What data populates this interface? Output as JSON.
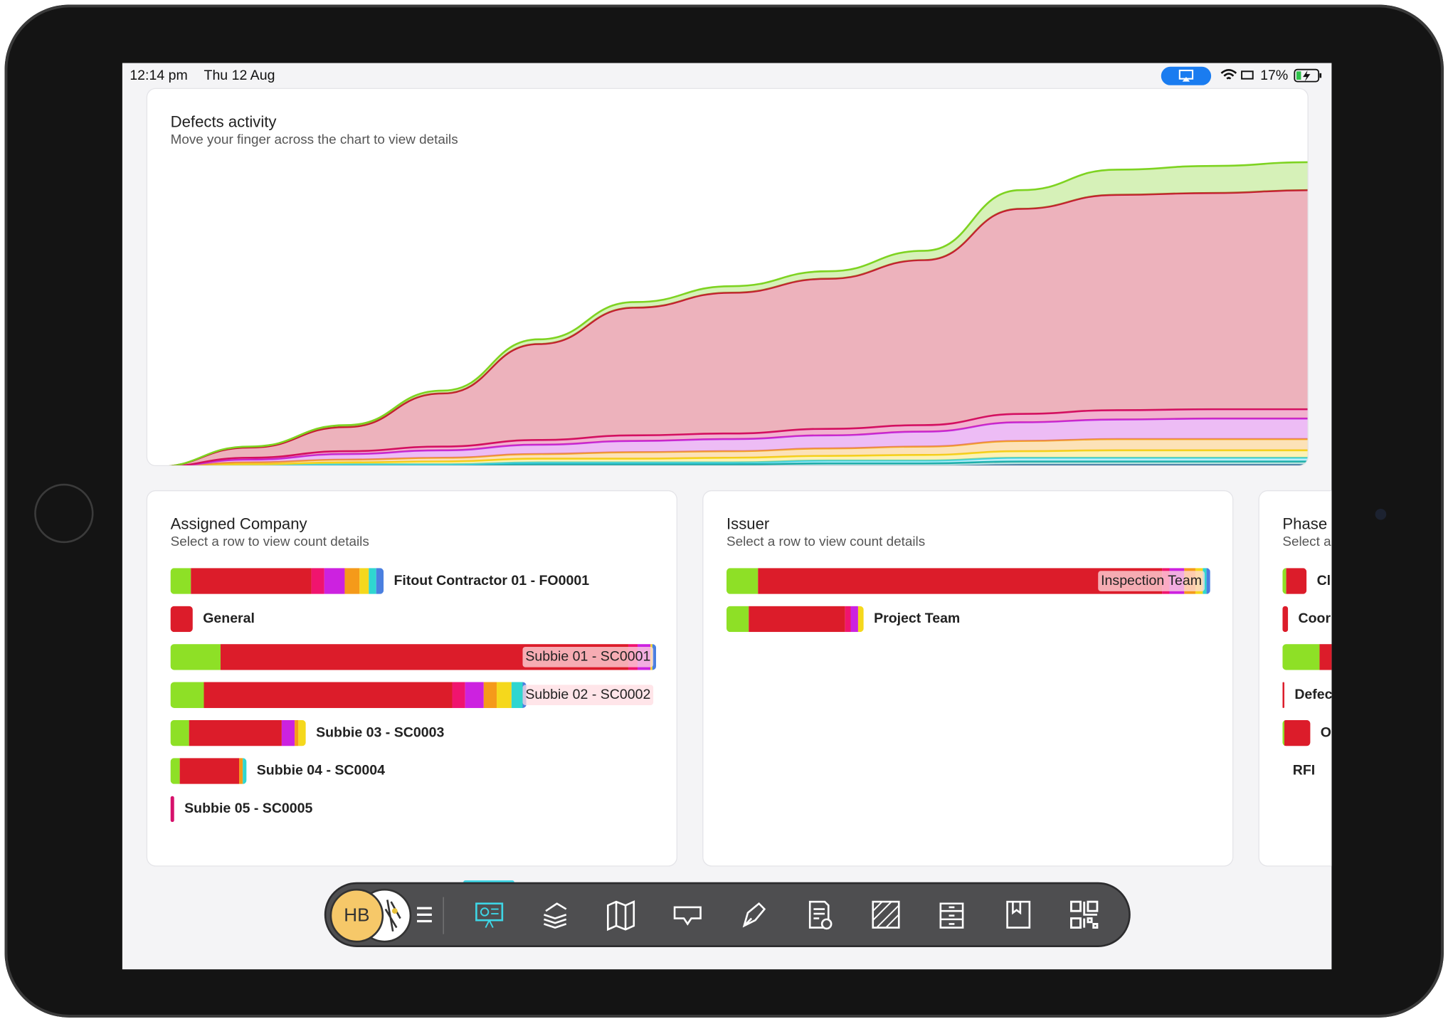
{
  "status_bar": {
    "time": "12:14 pm",
    "date": "Thu 12 Aug",
    "battery": "17%"
  },
  "chart_data": {
    "type": "area",
    "stacked": true,
    "title": "Defects activity",
    "subtitle": "Move your finger across the chart to view details",
    "categories": [
      null,
      null,
      null,
      null,
      null,
      null,
      null,
      null,
      null,
      null,
      null,
      null,
      null
    ],
    "ylim": [
      0,
      330
    ],
    "series": [
      {
        "color": "#1f3b8c",
        "values": [
          0,
          0,
          1,
          1,
          1,
          1,
          1,
          1,
          1,
          2,
          2,
          2,
          2
        ]
      },
      {
        "color": "#1aa8a0",
        "values": [
          0,
          1,
          1,
          1,
          2,
          2,
          2,
          3,
          3,
          4,
          4,
          4,
          4
        ]
      },
      {
        "color": "#35d0e8",
        "values": [
          0,
          1,
          1,
          1,
          2,
          2,
          2,
          3,
          3,
          4,
          4,
          4,
          4
        ]
      },
      {
        "color": "#f5d81c",
        "values": [
          0,
          1,
          2,
          3,
          4,
          4,
          5,
          5,
          6,
          7,
          8,
          8,
          8
        ]
      },
      {
        "color": "#f5a623",
        "values": [
          0,
          2,
          3,
          4,
          5,
          7,
          7,
          8,
          9,
          11,
          12,
          12,
          12
        ]
      },
      {
        "color": "#c62ee0",
        "values": [
          0,
          3,
          6,
          8,
          10,
          12,
          13,
          14,
          16,
          20,
          21,
          22,
          22
        ]
      },
      {
        "color": "#d6116b",
        "values": [
          0,
          2,
          3,
          4,
          5,
          6,
          6,
          7,
          7,
          9,
          10,
          10,
          10
        ]
      },
      {
        "color": "#c8102e",
        "values": [
          0,
          11,
          26,
          57,
          103,
          137,
          151,
          161,
          177,
          220,
          231,
          232,
          235
        ]
      },
      {
        "color": "#7ed321",
        "values": [
          0,
          1,
          2,
          3,
          5,
          6,
          7,
          8,
          10,
          20,
          27,
          29,
          30
        ]
      }
    ]
  },
  "panels": [
    {
      "title": "Assigned Company",
      "subtitle": "Select a row to view count details",
      "rows": [
        {
          "label": "Fitout Contractor 01 - FO0001",
          "segments": [
            {
              "color": "#8ee026",
              "value": 11
            },
            {
              "color": "#dc1c2a",
              "value": 65
            },
            {
              "color": "#f0146e",
              "value": 7
            },
            {
              "color": "#cc22e0",
              "value": 11
            },
            {
              "color": "#f59a1a",
              "value": 8
            },
            {
              "color": "#f5d81c",
              "value": 5
            },
            {
              "color": "#2fd6d0",
              "value": 4
            },
            {
              "color": "#4a7fe0",
              "value": 4
            }
          ]
        },
        {
          "label": "General",
          "segments": [
            {
              "color": "#dc1c2a",
              "value": 12
            }
          ]
        },
        {
          "label": "Subbie 01 - SC0001",
          "segments": [
            {
              "color": "#8ee026",
              "value": 27
            },
            {
              "color": "#dc1c2a",
              "value": 220
            },
            {
              "color": "#f0146e",
              "value": 5
            },
            {
              "color": "#cc22e0",
              "value": 7
            },
            {
              "color": "#f5d81c",
              "value": 1
            },
            {
              "color": "#4a7fe0",
              "value": 2
            }
          ]
        },
        {
          "label": "Subbie 02 - SC0002",
          "segments": [
            {
              "color": "#8ee026",
              "value": 18
            },
            {
              "color": "#dc1c2a",
              "value": 134
            },
            {
              "color": "#f0146e",
              "value": 7
            },
            {
              "color": "#cc22e0",
              "value": 10
            },
            {
              "color": "#f59a1a",
              "value": 7
            },
            {
              "color": "#f5d81c",
              "value": 8
            },
            {
              "color": "#2fd6d0",
              "value": 6
            },
            {
              "color": "#4a7fe0",
              "value": 2
            }
          ]
        },
        {
          "label": "Subbie 03 - SC0003",
          "segments": [
            {
              "color": "#8ee026",
              "value": 10
            },
            {
              "color": "#dc1c2a",
              "value": 50
            },
            {
              "color": "#cc22e0",
              "value": 7
            },
            {
              "color": "#f59a1a",
              "value": 2
            },
            {
              "color": "#f5d81c",
              "value": 4
            }
          ]
        },
        {
          "label": "Subbie 04 - SC0004",
          "segments": [
            {
              "color": "#8ee026",
              "value": 5
            },
            {
              "color": "#dc1c2a",
              "value": 32
            },
            {
              "color": "#f59a1a",
              "value": 2
            },
            {
              "color": "#2fd6d0",
              "value": 2
            }
          ]
        },
        {
          "label": "Subbie 05 - SC0005",
          "segments": [
            {
              "color": "#d6116b",
              "value": 2
            }
          ]
        }
      ]
    },
    {
      "title": "Issuer",
      "subtitle": "Select a row to view count details",
      "rows": [
        {
          "label": "Inspection Team",
          "segments": [
            {
              "color": "#8ee026",
              "value": 17
            },
            {
              "color": "#dc1c2a",
              "value": 218
            },
            {
              "color": "#f0146e",
              "value": 4
            },
            {
              "color": "#cc22e0",
              "value": 8
            },
            {
              "color": "#f59a1a",
              "value": 6
            },
            {
              "color": "#f5d81c",
              "value": 4
            },
            {
              "color": "#2fd6d0",
              "value": 2
            },
            {
              "color": "#4a7fe0",
              "value": 2
            }
          ]
        },
        {
          "label": "Project Team",
          "segments": [
            {
              "color": "#8ee026",
              "value": 12
            },
            {
              "color": "#dc1c2a",
              "value": 52
            },
            {
              "color": "#f0146e",
              "value": 3
            },
            {
              "color": "#cc22e0",
              "value": 4
            },
            {
              "color": "#f5d81c",
              "value": 3
            }
          ]
        }
      ]
    },
    {
      "title": "Phase",
      "subtitle": "Select a row to view count details",
      "rows": [
        {
          "label": "Cl",
          "segments": [
            {
              "color": "#8ee026",
              "value": 2
            },
            {
              "color": "#dc1c2a",
              "value": 11
            }
          ]
        },
        {
          "label": "Coor",
          "segments": [
            {
              "color": "#dc1c2a",
              "value": 3
            }
          ]
        },
        {
          "segments": [
            {
              "color": "#8ee026",
              "value": 20
            },
            {
              "color": "#dc1c2a",
              "value": 10
            }
          ]
        },
        {
          "label": "Defec",
          "segments": [
            {
              "color": "#dc1c2a",
              "value": 1
            }
          ]
        },
        {
          "label": "O",
          "segments": [
            {
              "color": "#8ee026",
              "value": 1
            },
            {
              "color": "#dc1c2a",
              "value": 14
            }
          ]
        },
        {
          "label": "RFI",
          "segments": []
        }
      ]
    }
  ],
  "dock": {
    "avatar": "HB"
  }
}
